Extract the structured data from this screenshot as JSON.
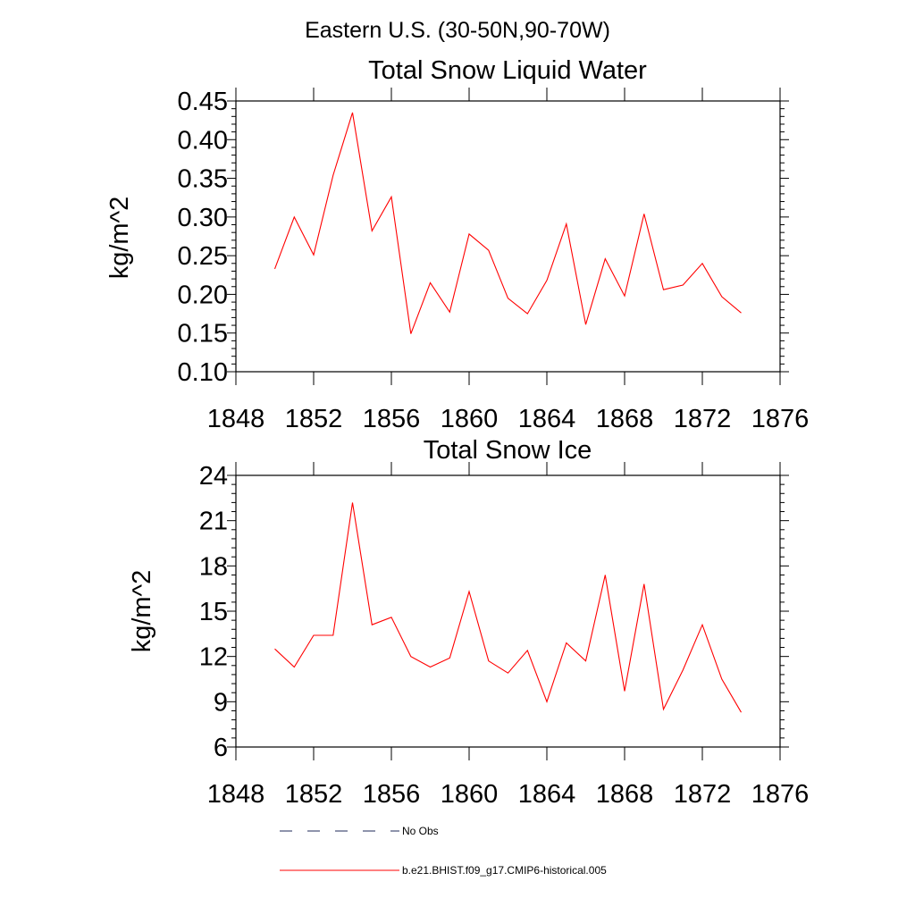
{
  "figure": {
    "suptitle": "Eastern U.S. (30-50N,90-70W)"
  },
  "chart_data": [
    {
      "type": "line",
      "title": "Total Snow Liquid Water",
      "xlabel": "",
      "ylabel": "kg/m^2",
      "xlim": [
        1848,
        1876
      ],
      "ylim": [
        0.1,
        0.45
      ],
      "xticks": [
        1848,
        1852,
        1856,
        1860,
        1864,
        1868,
        1872,
        1876
      ],
      "xtick_labels": [
        "1848",
        "1852",
        "1856",
        "1860",
        "1864",
        "1868",
        "1872",
        "1876"
      ],
      "yticks": [
        0.1,
        0.15,
        0.2,
        0.25,
        0.3,
        0.35,
        0.4,
        0.45
      ],
      "ytick_labels": [
        "0.10",
        "0.15",
        "0.20",
        "0.25",
        "0.30",
        "0.35",
        "0.40",
        "0.45"
      ],
      "series": [
        {
          "name": "b.e21.BHIST.f09_g17.CMIP6-historical.005",
          "color": "#ff0000",
          "x": [
            1850,
            1851,
            1852,
            1853,
            1854,
            1855,
            1856,
            1857,
            1858,
            1859,
            1860,
            1861,
            1862,
            1863,
            1864,
            1865,
            1866,
            1867,
            1868,
            1869,
            1870,
            1871,
            1872,
            1873,
            1874
          ],
          "values": [
            0.233,
            0.3,
            0.251,
            0.354,
            0.435,
            0.282,
            0.326,
            0.149,
            0.215,
            0.177,
            0.278,
            0.257,
            0.195,
            0.175,
            0.218,
            0.291,
            0.161,
            0.246,
            0.198,
            0.304,
            0.206,
            0.212,
            0.24,
            0.197,
            0.176
          ]
        }
      ]
    },
    {
      "type": "line",
      "title": "Total Snow Ice",
      "xlabel": "",
      "ylabel": "kg/m^2",
      "xlim": [
        1848,
        1876
      ],
      "ylim": [
        6,
        24
      ],
      "xticks": [
        1848,
        1852,
        1856,
        1860,
        1864,
        1868,
        1872,
        1876
      ],
      "xtick_labels": [
        "1848",
        "1852",
        "1856",
        "1860",
        "1864",
        "1868",
        "1872",
        "1876"
      ],
      "yticks": [
        6,
        9,
        12,
        15,
        18,
        21,
        24
      ],
      "ytick_labels": [
        "6",
        "9",
        "12",
        "15",
        "18",
        "21",
        "24"
      ],
      "series": [
        {
          "name": "b.e21.BHIST.f09_g17.CMIP6-historical.005",
          "color": "#ff0000",
          "x": [
            1850,
            1851,
            1852,
            1853,
            1854,
            1855,
            1856,
            1857,
            1858,
            1859,
            1860,
            1861,
            1862,
            1863,
            1864,
            1865,
            1866,
            1867,
            1868,
            1869,
            1870,
            1871,
            1872,
            1873,
            1874
          ],
          "values": [
            12.5,
            11.3,
            13.4,
            13.4,
            22.2,
            14.1,
            14.6,
            12.0,
            11.3,
            11.9,
            16.3,
            11.7,
            10.9,
            12.4,
            9.0,
            12.9,
            11.7,
            17.4,
            9.7,
            16.8,
            8.5,
            11.1,
            14.1,
            10.5,
            8.3
          ]
        }
      ]
    }
  ],
  "legend": {
    "placement": "bottom",
    "entries": [
      {
        "label": "No Obs",
        "color": "#1f2a5a",
        "style": "dashed"
      },
      {
        "label": "b.e21.BHIST.f09_g17.CMIP6-historical.005",
        "color": "#ff0000",
        "style": "solid"
      }
    ]
  }
}
